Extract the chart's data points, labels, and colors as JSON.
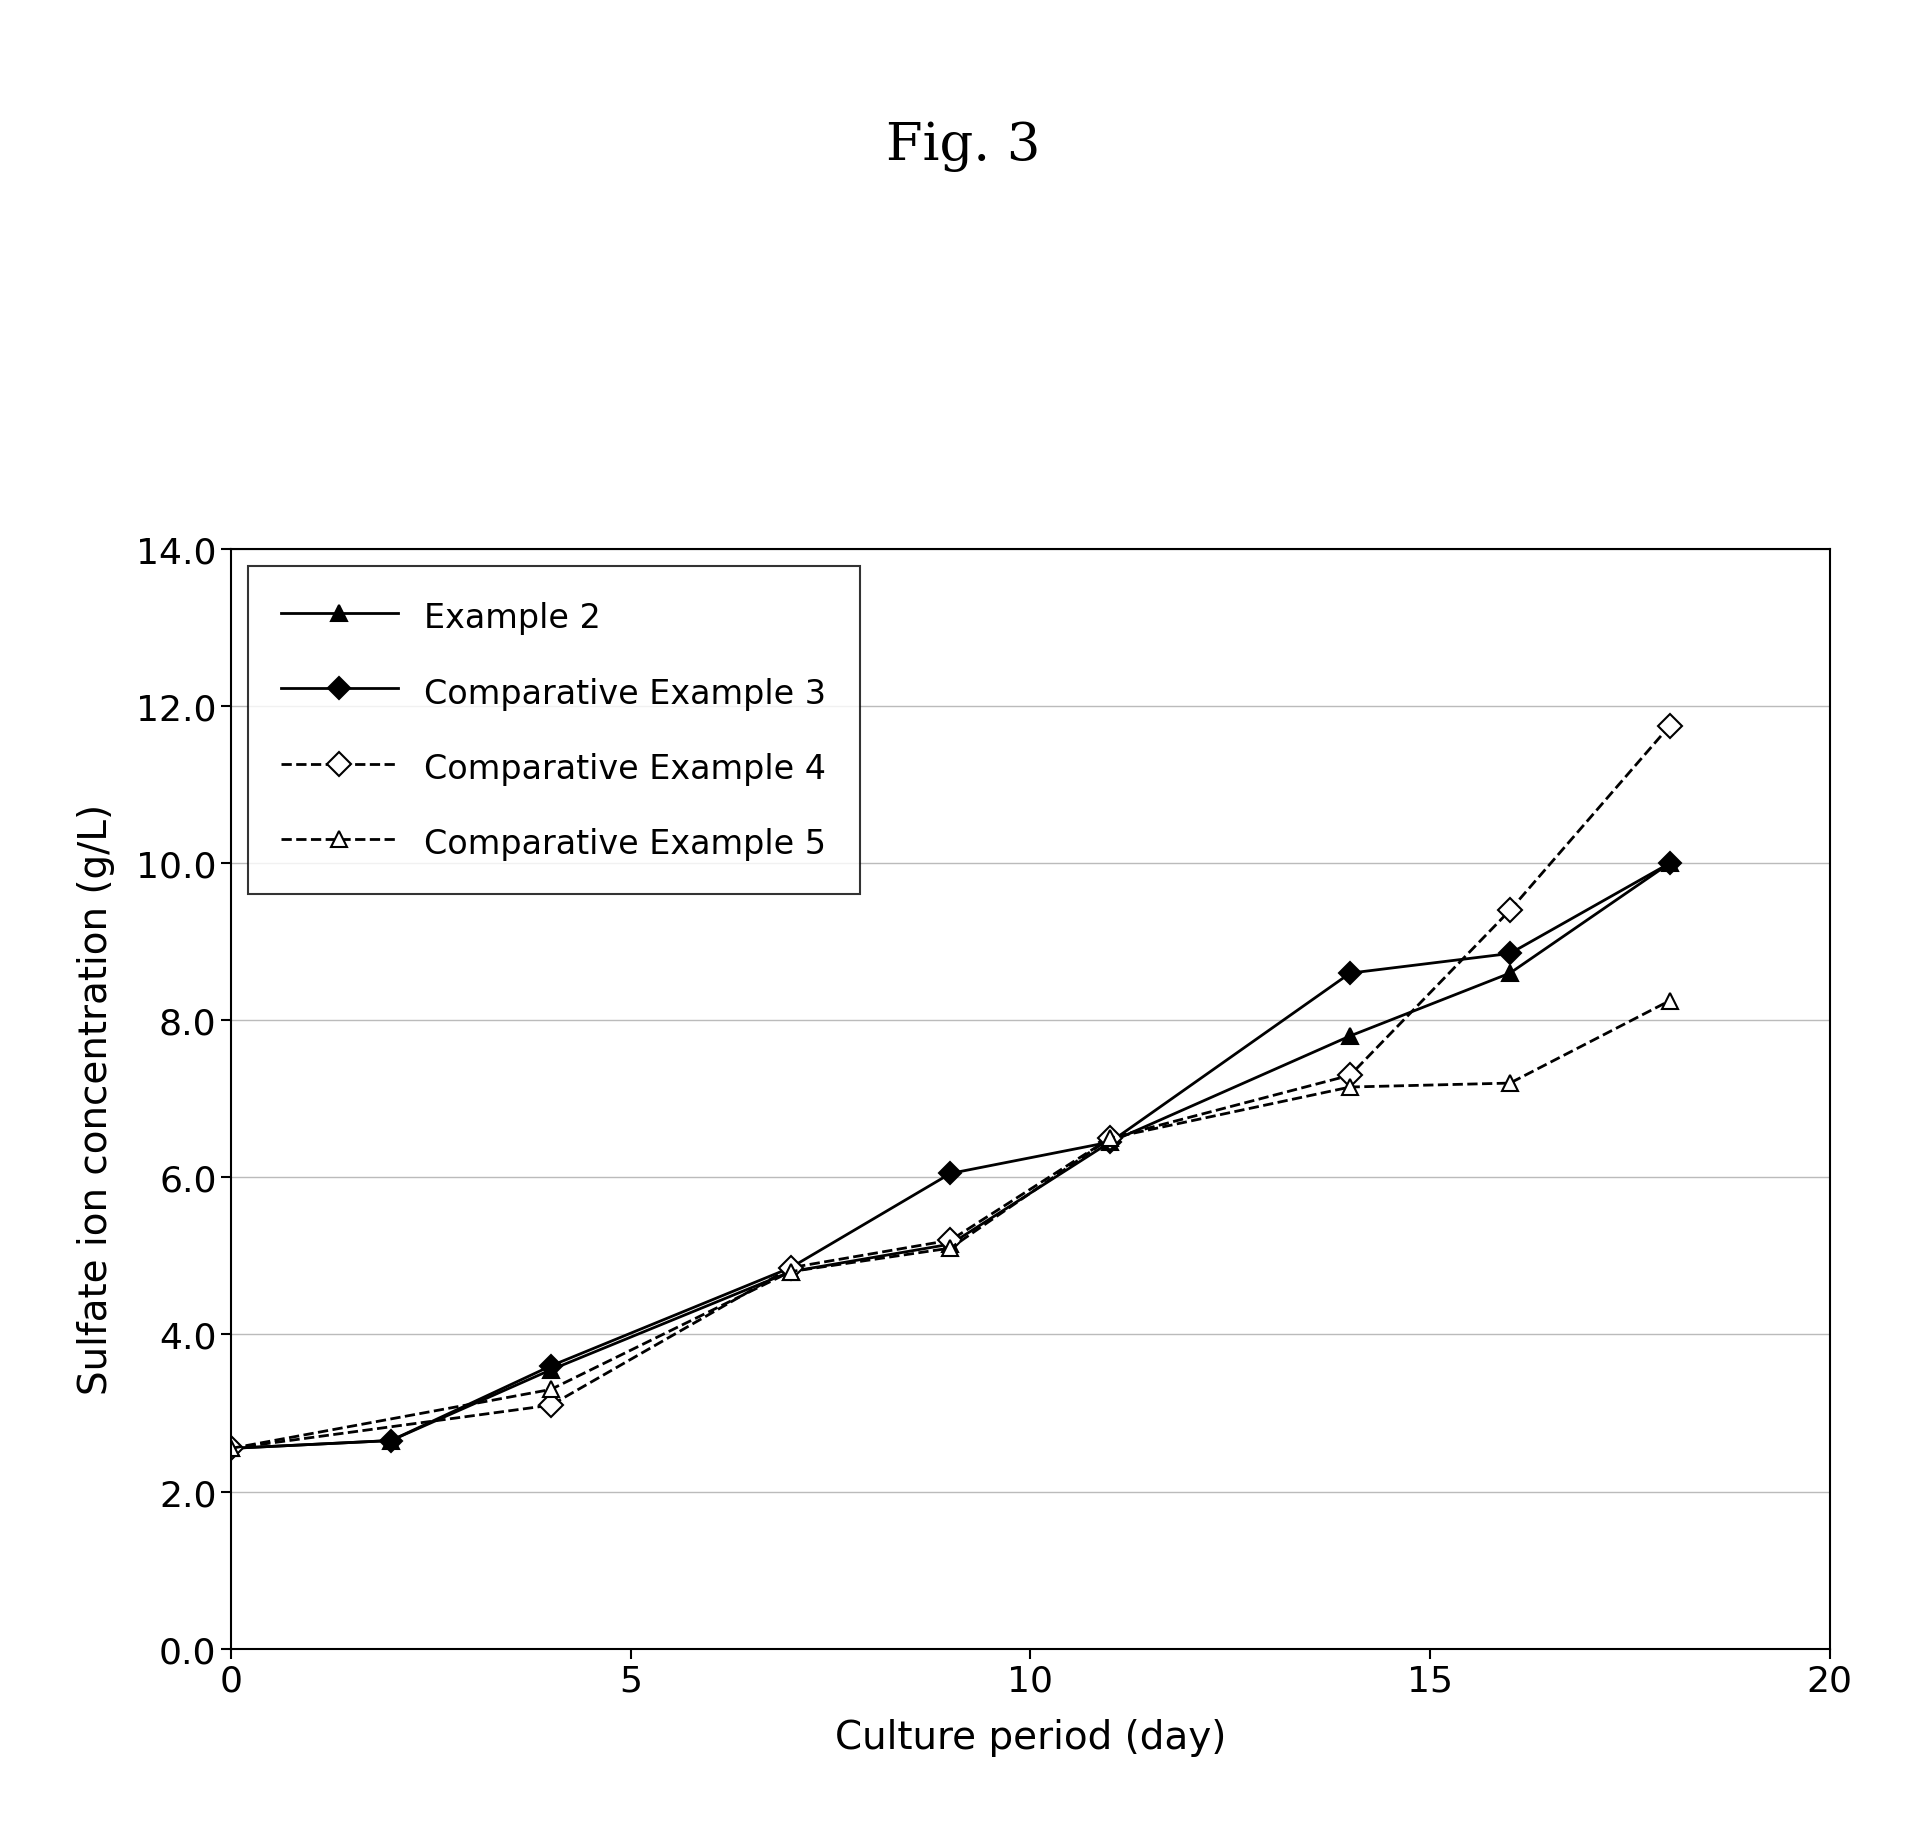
{
  "title": "Fig. 3",
  "xlabel": "Culture period (day)",
  "ylabel": "Sulfate ion concentration (g/L)",
  "xlim": [
    0,
    20
  ],
  "ylim": [
    0.0,
    14.0
  ],
  "xticks": [
    0,
    5,
    10,
    15,
    20
  ],
  "yticks": [
    0.0,
    2.0,
    4.0,
    6.0,
    8.0,
    10.0,
    12.0,
    14.0
  ],
  "series": [
    {
      "label": "Example 2",
      "x": [
        0,
        2,
        4,
        7,
        9,
        11,
        14,
        16,
        18
      ],
      "y": [
        2.55,
        2.65,
        3.55,
        4.8,
        5.15,
        6.45,
        7.8,
        8.6,
        10.0
      ],
      "linestyle": "-",
      "marker": "^",
      "markersize": 12,
      "markerfacecolor": "#000000",
      "markeredgecolor": "#000000",
      "color": "#000000",
      "linewidth": 2.0
    },
    {
      "label": "Comparative Example 3",
      "x": [
        0,
        2,
        4,
        7,
        9,
        11,
        14,
        16,
        18
      ],
      "y": [
        2.55,
        2.65,
        3.6,
        4.85,
        6.05,
        6.45,
        8.6,
        8.85,
        10.0
      ],
      "linestyle": "-",
      "marker": "D",
      "markersize": 11,
      "markerfacecolor": "#000000",
      "markeredgecolor": "#000000",
      "color": "#000000",
      "linewidth": 2.0
    },
    {
      "label": "Comparative Example 4",
      "x": [
        0,
        4,
        7,
        9,
        11,
        14,
        16,
        18
      ],
      "y": [
        2.55,
        3.1,
        4.85,
        5.2,
        6.5,
        7.3,
        9.4,
        11.75
      ],
      "linestyle": "--",
      "marker": "D",
      "markersize": 12,
      "markerfacecolor": "#ffffff",
      "markeredgecolor": "#000000",
      "color": "#000000",
      "linewidth": 2.0
    },
    {
      "label": "Comparative Example 5",
      "x": [
        0,
        4,
        7,
        9,
        11,
        14,
        16,
        18
      ],
      "y": [
        2.55,
        3.3,
        4.8,
        5.1,
        6.5,
        7.15,
        7.2,
        8.25
      ],
      "linestyle": "--",
      "marker": "^",
      "markersize": 12,
      "markerfacecolor": "#ffffff",
      "markeredgecolor": "#000000",
      "color": "#000000",
      "linewidth": 2.0
    }
  ],
  "legend_loc": "upper left",
  "background_color": "#ffffff",
  "title_fontsize": 38,
  "label_fontsize": 28,
  "tick_fontsize": 26,
  "legend_fontsize": 24
}
